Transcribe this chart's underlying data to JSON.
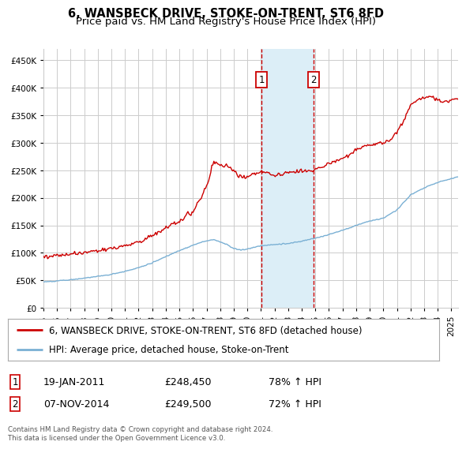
{
  "title": "6, WANSBECK DRIVE, STOKE-ON-TRENT, ST6 8FD",
  "subtitle": "Price paid vs. HM Land Registry's House Price Index (HPI)",
  "ylim": [
    0,
    470000
  ],
  "yticks": [
    0,
    50000,
    100000,
    150000,
    200000,
    250000,
    300000,
    350000,
    400000,
    450000
  ],
  "ytick_labels": [
    "£0",
    "£50K",
    "£100K",
    "£150K",
    "£200K",
    "£250K",
    "£300K",
    "£350K",
    "£400K",
    "£450K"
  ],
  "xlim_start": 1995.0,
  "xlim_end": 2025.5,
  "xtick_years": [
    1995,
    1996,
    1997,
    1998,
    1999,
    2000,
    2001,
    2002,
    2003,
    2004,
    2005,
    2006,
    2007,
    2008,
    2009,
    2010,
    2011,
    2012,
    2013,
    2014,
    2015,
    2016,
    2017,
    2018,
    2019,
    2020,
    2021,
    2022,
    2023,
    2024,
    2025
  ],
  "sale1_x": 2011.05,
  "sale1_y": 248450,
  "sale1_label": "1",
  "sale1_date": "19-JAN-2011",
  "sale1_price": "£248,450",
  "sale1_hpi": "78% ↑ HPI",
  "sale2_x": 2014.85,
  "sale2_y": 249500,
  "sale2_label": "2",
  "sale2_date": "07-NOV-2014",
  "sale2_price": "£249,500",
  "sale2_hpi": "72% ↑ HPI",
  "red_line_color": "#cc0000",
  "blue_line_color": "#7ab0d4",
  "shade_color": "#dceef7",
  "grid_color": "#cccccc",
  "bg_color": "#ffffff",
  "legend1_label": "6, WANSBECK DRIVE, STOKE-ON-TRENT, ST6 8FD (detached house)",
  "legend2_label": "HPI: Average price, detached house, Stoke-on-Trent",
  "footer": "Contains HM Land Registry data © Crown copyright and database right 2024.\nThis data is licensed under the Open Government Licence v3.0.",
  "title_fontsize": 10.5,
  "subtitle_fontsize": 9.5,
  "tick_fontsize": 7.5,
  "legend_fontsize": 8.5,
  "info_fontsize": 9
}
